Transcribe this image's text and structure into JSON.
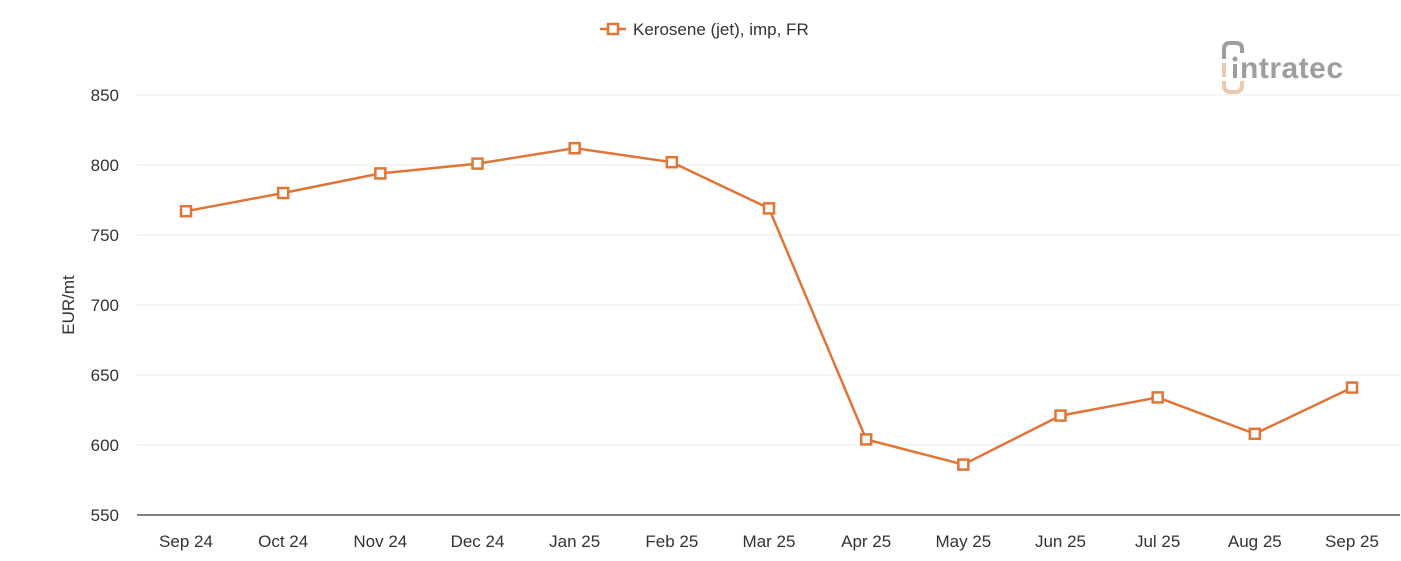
{
  "chart_data": {
    "type": "line",
    "title": "",
    "xlabel": "",
    "ylabel": "EUR/mt",
    "ylim": [
      550,
      850
    ],
    "yticks": [
      550,
      600,
      650,
      700,
      750,
      800,
      850
    ],
    "grid": true,
    "legend_position": "top-center",
    "categories": [
      "Sep 24",
      "Oct 24",
      "Nov 24",
      "Dec 24",
      "Jan 25",
      "Feb 25",
      "Mar 25",
      "Apr 25",
      "May 25",
      "Jun 25",
      "Jul 25",
      "Aug 25",
      "Sep 25"
    ],
    "series": [
      {
        "name": "Kerosene (jet), imp, FR",
        "color": "#e07536",
        "marker": "square-open",
        "values": [
          767,
          780,
          794,
          801,
          812,
          802,
          769,
          604,
          586,
          621,
          634,
          608,
          641
        ]
      }
    ]
  },
  "legend": {
    "label": "Kerosene (jet), imp, FR"
  },
  "logo": {
    "text": "ntratec",
    "brand": "intratec",
    "gray": "#9e9e9e",
    "accent": "#eac9ae"
  },
  "colors": {
    "series": "#e07536",
    "grid": "#ebebeb",
    "axis": "#555555"
  }
}
